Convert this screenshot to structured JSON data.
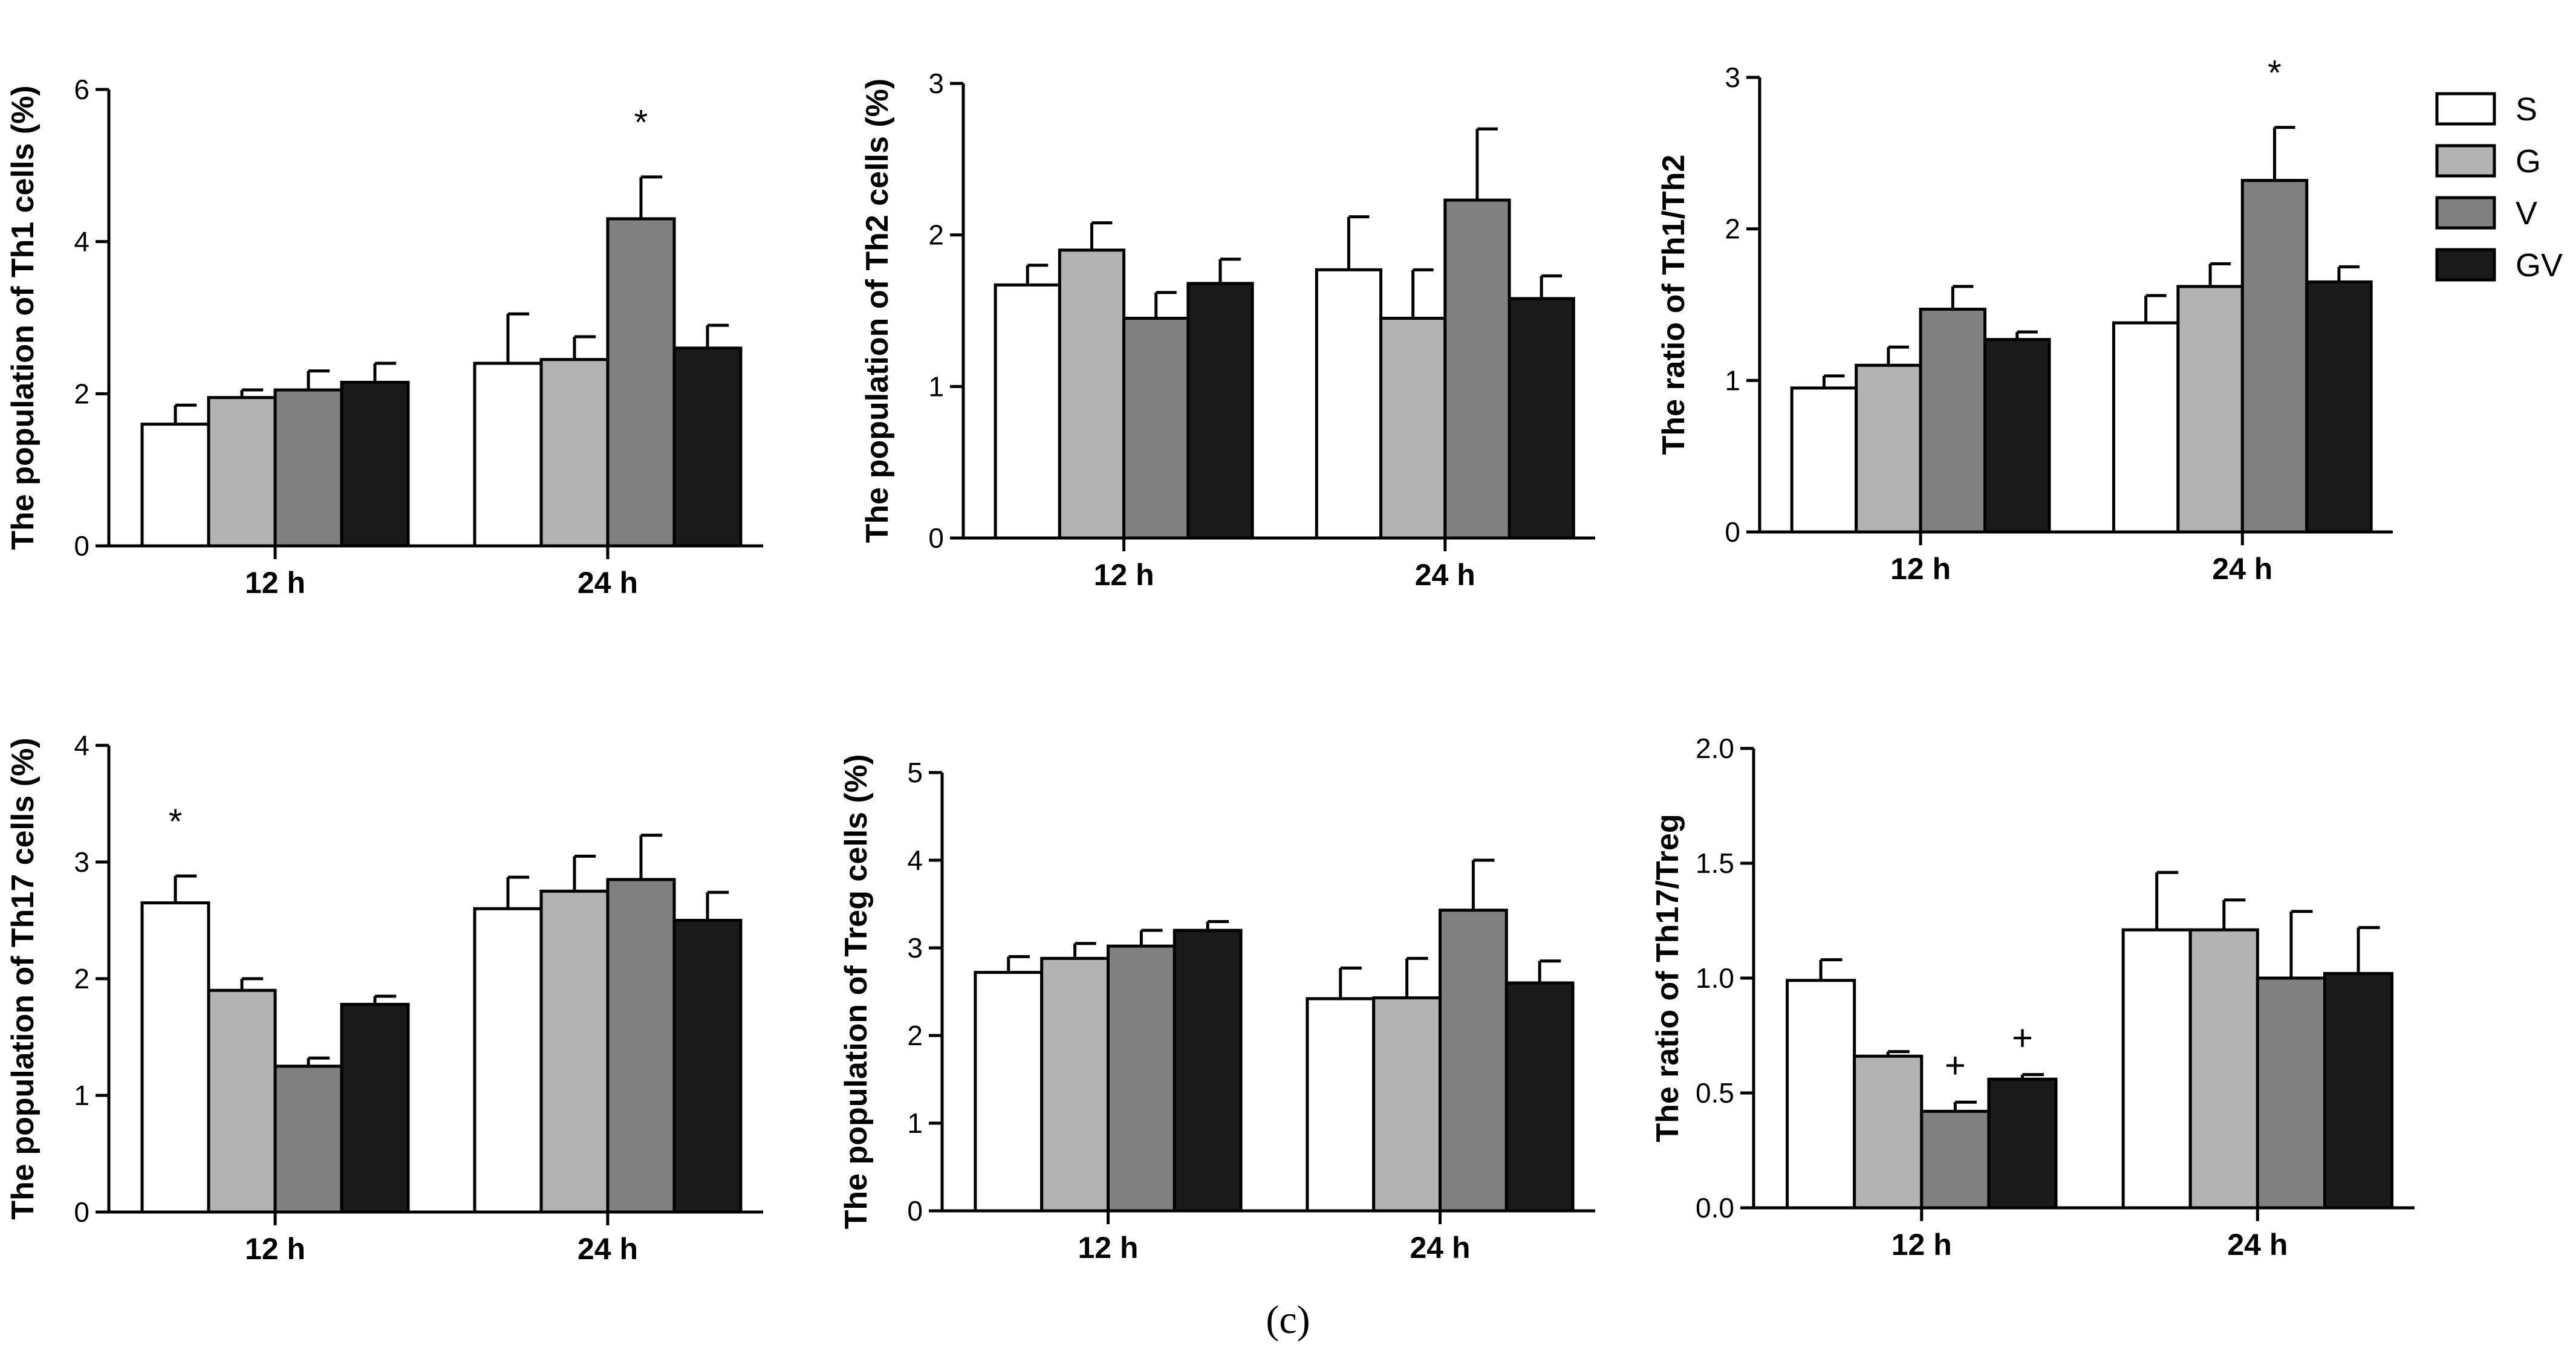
{
  "figure_label": "(c)",
  "legend": [
    {
      "key": "S",
      "color": "#ffffff"
    },
    {
      "key": "G",
      "color": "#b3b3b3"
    },
    {
      "key": "V",
      "color": "#808080"
    },
    {
      "key": "GV",
      "color": "#1a1a1a"
    }
  ],
  "chart_data": [
    {
      "type": "bar",
      "ylabel": "The population of Th1 cells  (%)",
      "categories": [
        "12 h",
        "24 h"
      ],
      "ylim": [
        0,
        6
      ],
      "yticks": [
        "0",
        "2",
        "4",
        "6"
      ],
      "series": [
        {
          "name": "S",
          "values": [
            1.6,
            2.4
          ],
          "errors": [
            0.25,
            0.65
          ]
        },
        {
          "name": "G",
          "values": [
            1.95,
            2.45
          ],
          "errors": [
            0.1,
            0.3
          ]
        },
        {
          "name": "V",
          "values": [
            2.05,
            4.3
          ],
          "errors": [
            0.25,
            0.55
          ]
        },
        {
          "name": "GV",
          "values": [
            2.15,
            2.6
          ],
          "errors": [
            0.25,
            0.3
          ]
        }
      ],
      "annotations": [
        {
          "text": "*",
          "category": 1,
          "series": 2
        }
      ]
    },
    {
      "type": "bar",
      "ylabel": "The population of Th2 cells  (%)",
      "categories": [
        "12 h",
        "24 h"
      ],
      "ylim": [
        0,
        3
      ],
      "yticks": [
        "0",
        "1",
        "2",
        "3"
      ],
      "series": [
        {
          "name": "S",
          "values": [
            1.67,
            1.77
          ],
          "errors": [
            0.13,
            0.35
          ]
        },
        {
          "name": "G",
          "values": [
            1.9,
            1.45
          ],
          "errors": [
            0.18,
            0.32
          ]
        },
        {
          "name": "V",
          "values": [
            1.45,
            2.23
          ],
          "errors": [
            0.17,
            0.47
          ]
        },
        {
          "name": "GV",
          "values": [
            1.68,
            1.58
          ],
          "errors": [
            0.16,
            0.15
          ]
        }
      ],
      "annotations": []
    },
    {
      "type": "bar",
      "ylabel": "The ratio of Th1/Th2",
      "categories": [
        "12 h",
        "24 h"
      ],
      "ylim": [
        0,
        3
      ],
      "yticks": [
        "0",
        "1",
        "2",
        "3"
      ],
      "series": [
        {
          "name": "S",
          "values": [
            0.95,
            1.38
          ],
          "errors": [
            0.08,
            0.18
          ]
        },
        {
          "name": "G",
          "values": [
            1.1,
            1.62
          ],
          "errors": [
            0.12,
            0.15
          ]
        },
        {
          "name": "V",
          "values": [
            1.47,
            2.32
          ],
          "errors": [
            0.15,
            0.35
          ]
        },
        {
          "name": "GV",
          "values": [
            1.27,
            1.65
          ],
          "errors": [
            0.05,
            0.1
          ]
        }
      ],
      "annotations": [
        {
          "text": "*",
          "category": 1,
          "series": 2
        }
      ]
    },
    {
      "type": "bar",
      "ylabel": "The population of Th17 cells  (%)",
      "categories": [
        "12 h",
        "24 h"
      ],
      "ylim": [
        0,
        4
      ],
      "yticks": [
        "0",
        "1",
        "2",
        "3",
        "4"
      ],
      "series": [
        {
          "name": "S",
          "values": [
            2.65,
            2.6
          ],
          "errors": [
            0.23,
            0.27
          ]
        },
        {
          "name": "G",
          "values": [
            1.9,
            2.75
          ],
          "errors": [
            0.1,
            0.3
          ]
        },
        {
          "name": "V",
          "values": [
            1.25,
            2.85
          ],
          "errors": [
            0.07,
            0.38
          ]
        },
        {
          "name": "GV",
          "values": [
            1.78,
            2.5
          ],
          "errors": [
            0.07,
            0.24
          ]
        }
      ],
      "annotations": [
        {
          "text": "*",
          "category": 0,
          "series": 0
        }
      ]
    },
    {
      "type": "bar",
      "ylabel": "The population of Treg cells  (%)",
      "categories": [
        "12 h",
        "24 h"
      ],
      "ylim": [
        0,
        5
      ],
      "yticks": [
        "0",
        "1",
        "2",
        "3",
        "4",
        "5"
      ],
      "series": [
        {
          "name": "S",
          "values": [
            2.72,
            2.42
          ],
          "errors": [
            0.18,
            0.35
          ]
        },
        {
          "name": "G",
          "values": [
            2.88,
            2.43
          ],
          "errors": [
            0.17,
            0.45
          ]
        },
        {
          "name": "V",
          "values": [
            3.02,
            3.43
          ],
          "errors": [
            0.18,
            0.57
          ]
        },
        {
          "name": "GV",
          "values": [
            3.2,
            2.6
          ],
          "errors": [
            0.1,
            0.25
          ]
        }
      ],
      "annotations": []
    },
    {
      "type": "bar",
      "ylabel": "The ratio of Th17/Treg",
      "categories": [
        "12 h",
        "24 h"
      ],
      "ylim": [
        0,
        2
      ],
      "yticks": [
        "0.0",
        "0.5",
        "1.0",
        "1.5",
        "2.0"
      ],
      "series": [
        {
          "name": "S",
          "values": [
            0.99,
            1.21
          ],
          "errors": [
            0.09,
            0.25
          ]
        },
        {
          "name": "G",
          "values": [
            0.66,
            1.21
          ],
          "errors": [
            0.02,
            0.13
          ]
        },
        {
          "name": "V",
          "values": [
            0.42,
            1.0
          ],
          "errors": [
            0.04,
            0.29
          ]
        },
        {
          "name": "GV",
          "values": [
            0.56,
            1.02
          ],
          "errors": [
            0.02,
            0.2
          ]
        }
      ],
      "annotations": [
        {
          "text": "+",
          "category": 0,
          "series": 2
        },
        {
          "text": "+",
          "category": 0,
          "series": 3
        }
      ]
    }
  ]
}
